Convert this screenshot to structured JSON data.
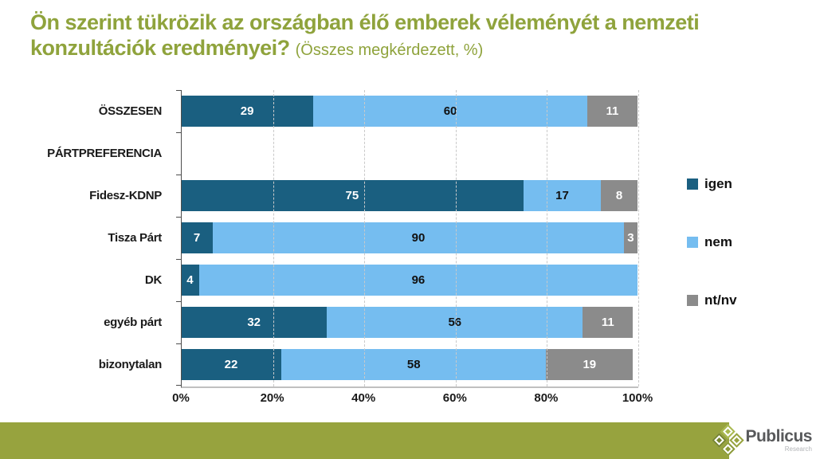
{
  "title": {
    "main": "Ön szerint tükrözik az országban élő emberek véleményét a nemzeti konzultációk eredményei?",
    "subtitle": "(Összes megkérdezett, %)",
    "color": "#8FA33C"
  },
  "chart_data": {
    "type": "bar",
    "orientation": "horizontal",
    "stacked": true,
    "unit": "%",
    "categories": [
      "ÖSSZESEN",
      "PÁRTPREFERENCIA",
      "Fidesz-KDNP",
      "Tisza Párt",
      "DK",
      "egyéb párt",
      "bizonytalan"
    ],
    "series": [
      {
        "name": "igen",
        "color": "#1A5F80",
        "label_color": "#FFFFFF",
        "values": [
          29,
          null,
          75,
          7,
          4,
          32,
          22
        ]
      },
      {
        "name": "nem",
        "color": "#75BDF0",
        "label_color": "#111111",
        "values": [
          60,
          null,
          17,
          90,
          96,
          56,
          58
        ]
      },
      {
        "name": "nt/nv",
        "color": "#8B8B8B",
        "label_color": "#FFFFFF",
        "values": [
          11,
          null,
          8,
          3,
          0,
          11,
          19
        ]
      }
    ],
    "x_ticks": [
      "0%",
      "20%",
      "40%",
      "60%",
      "80%",
      "100%"
    ],
    "xlim": [
      0,
      100
    ],
    "grid": "dashed-vertical",
    "legend_position": "right",
    "note": "PÁRTPREFERENCIA is a section header row with no bar"
  },
  "footer": {
    "band_color": "#97A33E",
    "logo": {
      "brand": "Publicus",
      "sub": "Research"
    }
  }
}
